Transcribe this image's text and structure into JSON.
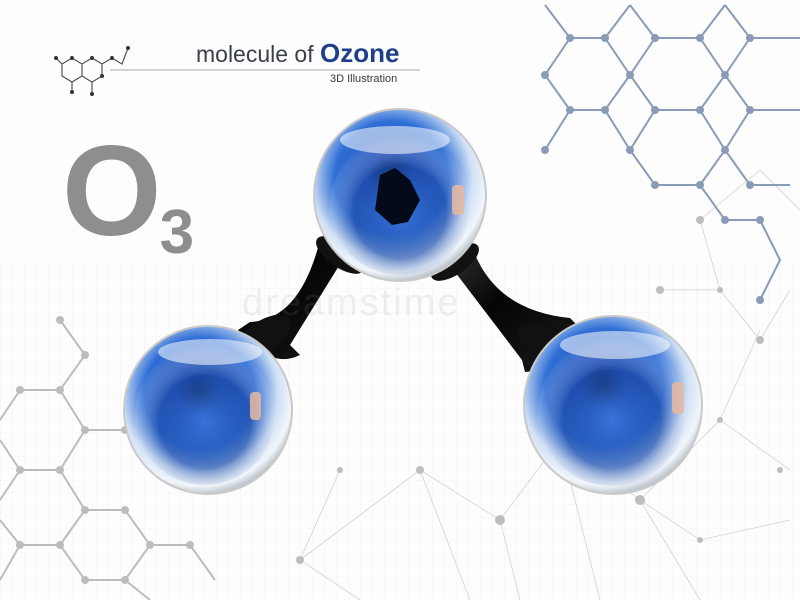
{
  "title": {
    "prefix": "molecule of ",
    "highlight": "Ozone",
    "subtitle": "3D Illustration"
  },
  "formula": {
    "element": "O",
    "subscript": "3"
  },
  "watermark": "dreamstime",
  "colors": {
    "hex_line": "#8a9bb8",
    "title_accent": "#1f3f8a",
    "formula_gray": "#8e8e8e",
    "sphere_blue": "#1e4fb0",
    "bond_black": "#0d0d0d"
  }
}
